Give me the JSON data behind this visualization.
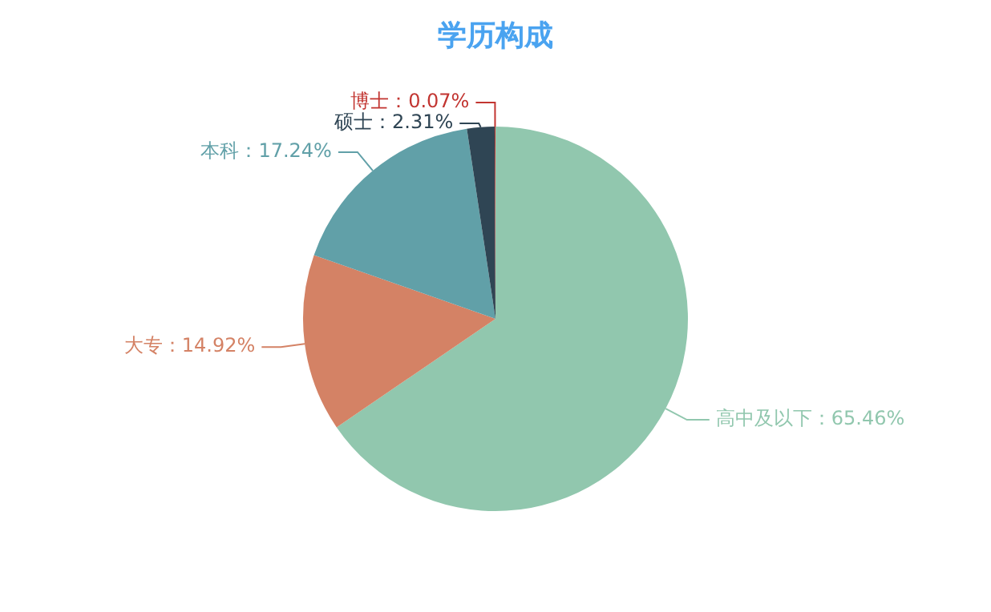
{
  "chart_data": {
    "type": "pie",
    "title": "学历构成",
    "categories": [
      "高中及以下",
      "大专",
      "本科",
      "硕士",
      "博士"
    ],
    "values": [
      65.46,
      14.92,
      17.24,
      2.31,
      0.07
    ],
    "colors": [
      "#91c7ae",
      "#d48265",
      "#61a0a8",
      "#2f4554",
      "#c23531"
    ],
    "value_labels": [
      "：65.46%",
      "：14.92%",
      "：17.24%",
      "：2.31%",
      "：0.07%"
    ],
    "legend": false
  }
}
